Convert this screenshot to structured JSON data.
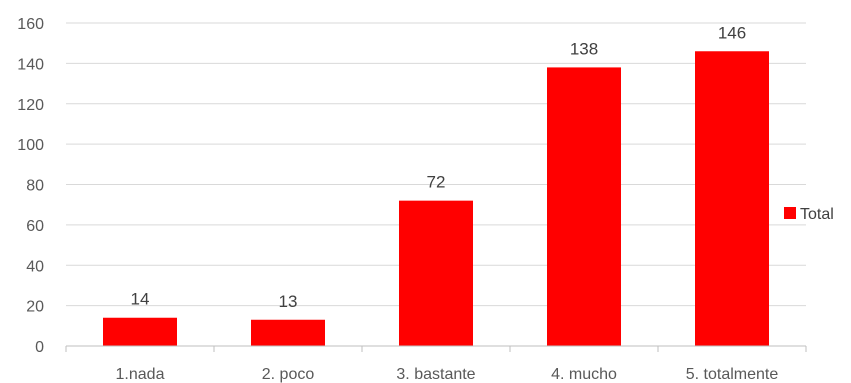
{
  "chart_data": {
    "type": "bar",
    "title": "",
    "xlabel": "",
    "ylabel": "",
    "categories": [
      "1.nada",
      "2. poco",
      "3. bastante",
      "4. mucho",
      "5. totalmente"
    ],
    "series": [
      {
        "name": "Total",
        "values": [
          14,
          13,
          72,
          138,
          146
        ],
        "color": "#ff0000"
      }
    ],
    "ylim": [
      0,
      160
    ],
    "yticks": [
      0,
      20,
      40,
      60,
      80,
      100,
      120,
      140,
      160
    ],
    "grid": true,
    "data_labels": true,
    "legend": {
      "position": "right"
    },
    "colors": {
      "bar": "#ff0000",
      "grid": "#d9d9d9",
      "axis": "#bfbfbf",
      "text": "#595959"
    }
  }
}
